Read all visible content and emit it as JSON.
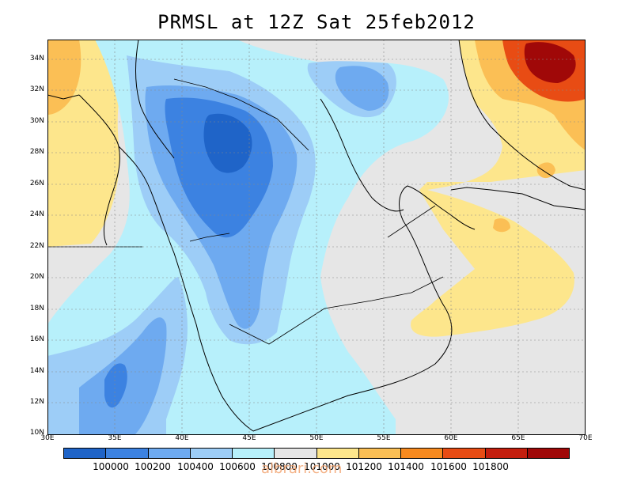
{
  "title": "PRMSL at 12Z Sat 25feb2012",
  "watermark": "albrari.com",
  "lat_labels": [
    "34N",
    "32N",
    "30N",
    "28N",
    "26N",
    "24N",
    "22N",
    "20N",
    "18N",
    "16N",
    "14N",
    "12N",
    "10N"
  ],
  "lon_labels": [
    "30E",
    "35E",
    "40E",
    "45E",
    "50E",
    "55E",
    "60E",
    "65E",
    "70E"
  ],
  "colorbar_colors": [
    "#1f64c8",
    "#3c82e1",
    "#6eaaf0",
    "#9dcdf7",
    "#b7f0fb",
    "#e6e6e6",
    "#fde68c",
    "#fbbf55",
    "#f78a1f",
    "#e84c14",
    "#c41e0e",
    "#a00808"
  ],
  "colorbar_labels": [
    "100000",
    "100200",
    "100400",
    "100600",
    "100800",
    "101000",
    "101200",
    "101400",
    "101600",
    "101800"
  ],
  "colors": {
    "c100000": "#1f64c8",
    "c100200": "#3c82e1",
    "c100400": "#6eaaf0",
    "c100600": "#9dcdf7",
    "c100800": "#b7f0fb",
    "c101000": "#e6e6e6",
    "c101200": "#fde68c",
    "c101400": "#fbbf55",
    "c101600": "#f78a1f",
    "c101800": "#e84c14"
  }
}
